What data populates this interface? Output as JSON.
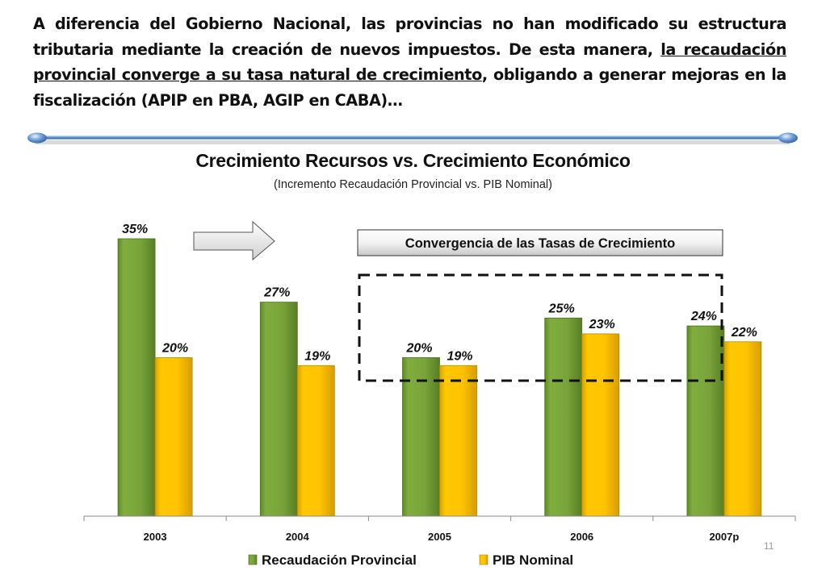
{
  "intro": {
    "part1": "A diferencia del Gobierno Nacional, las provincias no han modificado su estructura tributaria mediante la creación de nuevos impuestos. De esta manera, ",
    "underlined": "la recaudación provincial converge a su tasa natural de crecimiento",
    "part2": ", obligando a generar mejoras en la fiscalización (APIP en PBA, AGIP en CABA)…"
  },
  "page_number": "11",
  "chart_data": {
    "type": "bar",
    "title": "Crecimiento Recursos vs. Crecimiento Económico",
    "subtitle": "(Incremento Recaudación Provincial vs. PIB Nominal)",
    "xlabel": "",
    "ylabel": "",
    "ylim": [
      0,
      35
    ],
    "grid": false,
    "categories": [
      "2003",
      "2004",
      "2005",
      "2006",
      "2007p"
    ],
    "series": [
      {
        "name": "Recaudación Provincial",
        "color": "#7aa83a",
        "values": [
          35,
          27,
          20,
          25,
          24
        ],
        "labels": [
          "35%",
          "27%",
          "20%",
          "25%",
          "24%"
        ]
      },
      {
        "name": "PIB Nominal",
        "color": "#ffc000",
        "values": [
          20,
          19,
          19,
          23,
          22
        ],
        "labels": [
          "20%",
          "19%",
          "19%",
          "23%",
          "22%"
        ]
      }
    ],
    "legend_position": "bottom",
    "annotations": [
      {
        "type": "callout-box",
        "text": "Convergencia de las Tasas de Crecimiento",
        "covers_categories": [
          "2005",
          "2006",
          "2007p"
        ]
      },
      {
        "type": "arrow",
        "direction": "right"
      }
    ]
  }
}
